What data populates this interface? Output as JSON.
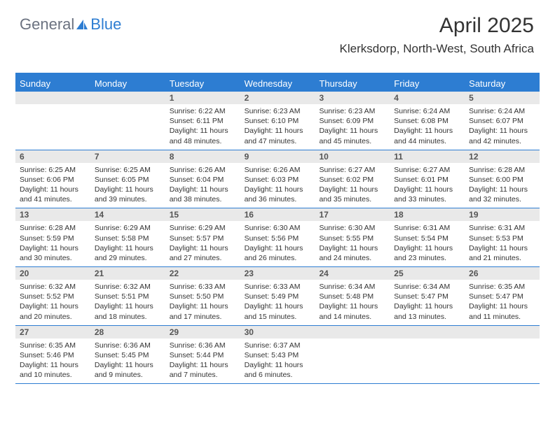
{
  "logo": {
    "text_general": "General",
    "text_blue": "Blue",
    "accent_color": "#2d7dd2",
    "text_color": "#6b7280"
  },
  "header": {
    "title": "April 2025",
    "location": "Klerksdorp, North-West, South Africa"
  },
  "calendar": {
    "header_bg": "#2d7dd2",
    "header_text": "#ffffff",
    "daynum_bg": "#e9e9e9",
    "border_color": "#2d7dd2",
    "dayheaders": [
      "Sunday",
      "Monday",
      "Tuesday",
      "Wednesday",
      "Thursday",
      "Friday",
      "Saturday"
    ],
    "weeks": [
      [
        null,
        null,
        {
          "n": "1",
          "sunrise": "Sunrise: 6:22 AM",
          "sunset": "Sunset: 6:11 PM",
          "daylight": "Daylight: 11 hours and 48 minutes."
        },
        {
          "n": "2",
          "sunrise": "Sunrise: 6:23 AM",
          "sunset": "Sunset: 6:10 PM",
          "daylight": "Daylight: 11 hours and 47 minutes."
        },
        {
          "n": "3",
          "sunrise": "Sunrise: 6:23 AM",
          "sunset": "Sunset: 6:09 PM",
          "daylight": "Daylight: 11 hours and 45 minutes."
        },
        {
          "n": "4",
          "sunrise": "Sunrise: 6:24 AM",
          "sunset": "Sunset: 6:08 PM",
          "daylight": "Daylight: 11 hours and 44 minutes."
        },
        {
          "n": "5",
          "sunrise": "Sunrise: 6:24 AM",
          "sunset": "Sunset: 6:07 PM",
          "daylight": "Daylight: 11 hours and 42 minutes."
        }
      ],
      [
        {
          "n": "6",
          "sunrise": "Sunrise: 6:25 AM",
          "sunset": "Sunset: 6:06 PM",
          "daylight": "Daylight: 11 hours and 41 minutes."
        },
        {
          "n": "7",
          "sunrise": "Sunrise: 6:25 AM",
          "sunset": "Sunset: 6:05 PM",
          "daylight": "Daylight: 11 hours and 39 minutes."
        },
        {
          "n": "8",
          "sunrise": "Sunrise: 6:26 AM",
          "sunset": "Sunset: 6:04 PM",
          "daylight": "Daylight: 11 hours and 38 minutes."
        },
        {
          "n": "9",
          "sunrise": "Sunrise: 6:26 AM",
          "sunset": "Sunset: 6:03 PM",
          "daylight": "Daylight: 11 hours and 36 minutes."
        },
        {
          "n": "10",
          "sunrise": "Sunrise: 6:27 AM",
          "sunset": "Sunset: 6:02 PM",
          "daylight": "Daylight: 11 hours and 35 minutes."
        },
        {
          "n": "11",
          "sunrise": "Sunrise: 6:27 AM",
          "sunset": "Sunset: 6:01 PM",
          "daylight": "Daylight: 11 hours and 33 minutes."
        },
        {
          "n": "12",
          "sunrise": "Sunrise: 6:28 AM",
          "sunset": "Sunset: 6:00 PM",
          "daylight": "Daylight: 11 hours and 32 minutes."
        }
      ],
      [
        {
          "n": "13",
          "sunrise": "Sunrise: 6:28 AM",
          "sunset": "Sunset: 5:59 PM",
          "daylight": "Daylight: 11 hours and 30 minutes."
        },
        {
          "n": "14",
          "sunrise": "Sunrise: 6:29 AM",
          "sunset": "Sunset: 5:58 PM",
          "daylight": "Daylight: 11 hours and 29 minutes."
        },
        {
          "n": "15",
          "sunrise": "Sunrise: 6:29 AM",
          "sunset": "Sunset: 5:57 PM",
          "daylight": "Daylight: 11 hours and 27 minutes."
        },
        {
          "n": "16",
          "sunrise": "Sunrise: 6:30 AM",
          "sunset": "Sunset: 5:56 PM",
          "daylight": "Daylight: 11 hours and 26 minutes."
        },
        {
          "n": "17",
          "sunrise": "Sunrise: 6:30 AM",
          "sunset": "Sunset: 5:55 PM",
          "daylight": "Daylight: 11 hours and 24 minutes."
        },
        {
          "n": "18",
          "sunrise": "Sunrise: 6:31 AM",
          "sunset": "Sunset: 5:54 PM",
          "daylight": "Daylight: 11 hours and 23 minutes."
        },
        {
          "n": "19",
          "sunrise": "Sunrise: 6:31 AM",
          "sunset": "Sunset: 5:53 PM",
          "daylight": "Daylight: 11 hours and 21 minutes."
        }
      ],
      [
        {
          "n": "20",
          "sunrise": "Sunrise: 6:32 AM",
          "sunset": "Sunset: 5:52 PM",
          "daylight": "Daylight: 11 hours and 20 minutes."
        },
        {
          "n": "21",
          "sunrise": "Sunrise: 6:32 AM",
          "sunset": "Sunset: 5:51 PM",
          "daylight": "Daylight: 11 hours and 18 minutes."
        },
        {
          "n": "22",
          "sunrise": "Sunrise: 6:33 AM",
          "sunset": "Sunset: 5:50 PM",
          "daylight": "Daylight: 11 hours and 17 minutes."
        },
        {
          "n": "23",
          "sunrise": "Sunrise: 6:33 AM",
          "sunset": "Sunset: 5:49 PM",
          "daylight": "Daylight: 11 hours and 15 minutes."
        },
        {
          "n": "24",
          "sunrise": "Sunrise: 6:34 AM",
          "sunset": "Sunset: 5:48 PM",
          "daylight": "Daylight: 11 hours and 14 minutes."
        },
        {
          "n": "25",
          "sunrise": "Sunrise: 6:34 AM",
          "sunset": "Sunset: 5:47 PM",
          "daylight": "Daylight: 11 hours and 13 minutes."
        },
        {
          "n": "26",
          "sunrise": "Sunrise: 6:35 AM",
          "sunset": "Sunset: 5:47 PM",
          "daylight": "Daylight: 11 hours and 11 minutes."
        }
      ],
      [
        {
          "n": "27",
          "sunrise": "Sunrise: 6:35 AM",
          "sunset": "Sunset: 5:46 PM",
          "daylight": "Daylight: 11 hours and 10 minutes."
        },
        {
          "n": "28",
          "sunrise": "Sunrise: 6:36 AM",
          "sunset": "Sunset: 5:45 PM",
          "daylight": "Daylight: 11 hours and 9 minutes."
        },
        {
          "n": "29",
          "sunrise": "Sunrise: 6:36 AM",
          "sunset": "Sunset: 5:44 PM",
          "daylight": "Daylight: 11 hours and 7 minutes."
        },
        {
          "n": "30",
          "sunrise": "Sunrise: 6:37 AM",
          "sunset": "Sunset: 5:43 PM",
          "daylight": "Daylight: 11 hours and 6 minutes."
        },
        null,
        null,
        null
      ]
    ]
  }
}
